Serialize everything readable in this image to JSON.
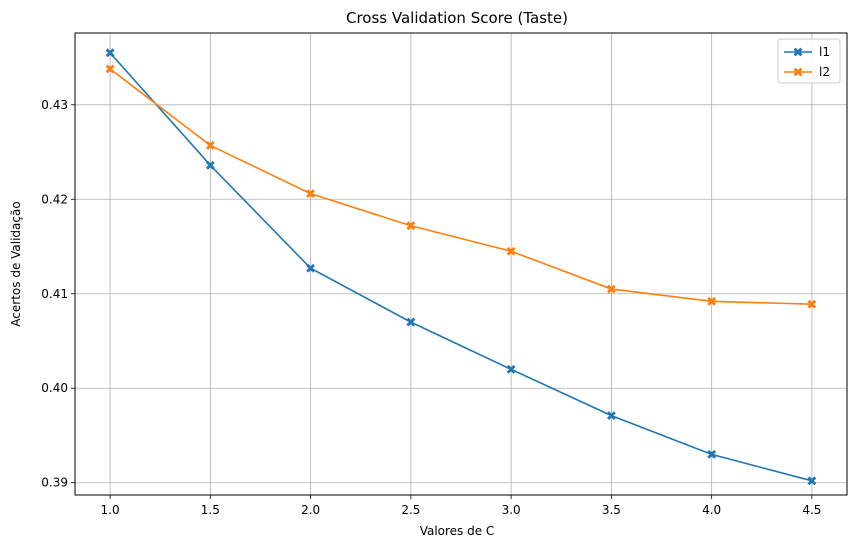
{
  "chart_data": {
    "type": "line",
    "title": "Cross Validation Score (Taste)",
    "xlabel": "Valores de C",
    "ylabel": "Acertos de Validação",
    "x": [
      1.0,
      1.5,
      2.0,
      2.5,
      3.0,
      3.5,
      4.0,
      4.5
    ],
    "xticks": [
      "1.0",
      "1.5",
      "2.0",
      "2.5",
      "3.0",
      "3.5",
      "4.0",
      "4.5"
    ],
    "yticks": [
      "0.39",
      "0.40",
      "0.41",
      "0.42",
      "0.43"
    ],
    "xlim": [
      0.825,
      4.675
    ],
    "ylim": [
      0.3887,
      0.4376
    ],
    "grid": true,
    "legend_position": "top-right",
    "marker": "X",
    "series": [
      {
        "name": "l1",
        "color": "#1f77b4",
        "values": [
          0.4355,
          0.4236,
          0.4127,
          0.407,
          0.402,
          0.3971,
          0.393,
          0.3902
        ]
      },
      {
        "name": "l2",
        "color": "#ff7f0e",
        "values": [
          0.4338,
          0.4257,
          0.4206,
          0.4172,
          0.4145,
          0.4105,
          0.4092,
          0.4089
        ]
      }
    ]
  }
}
